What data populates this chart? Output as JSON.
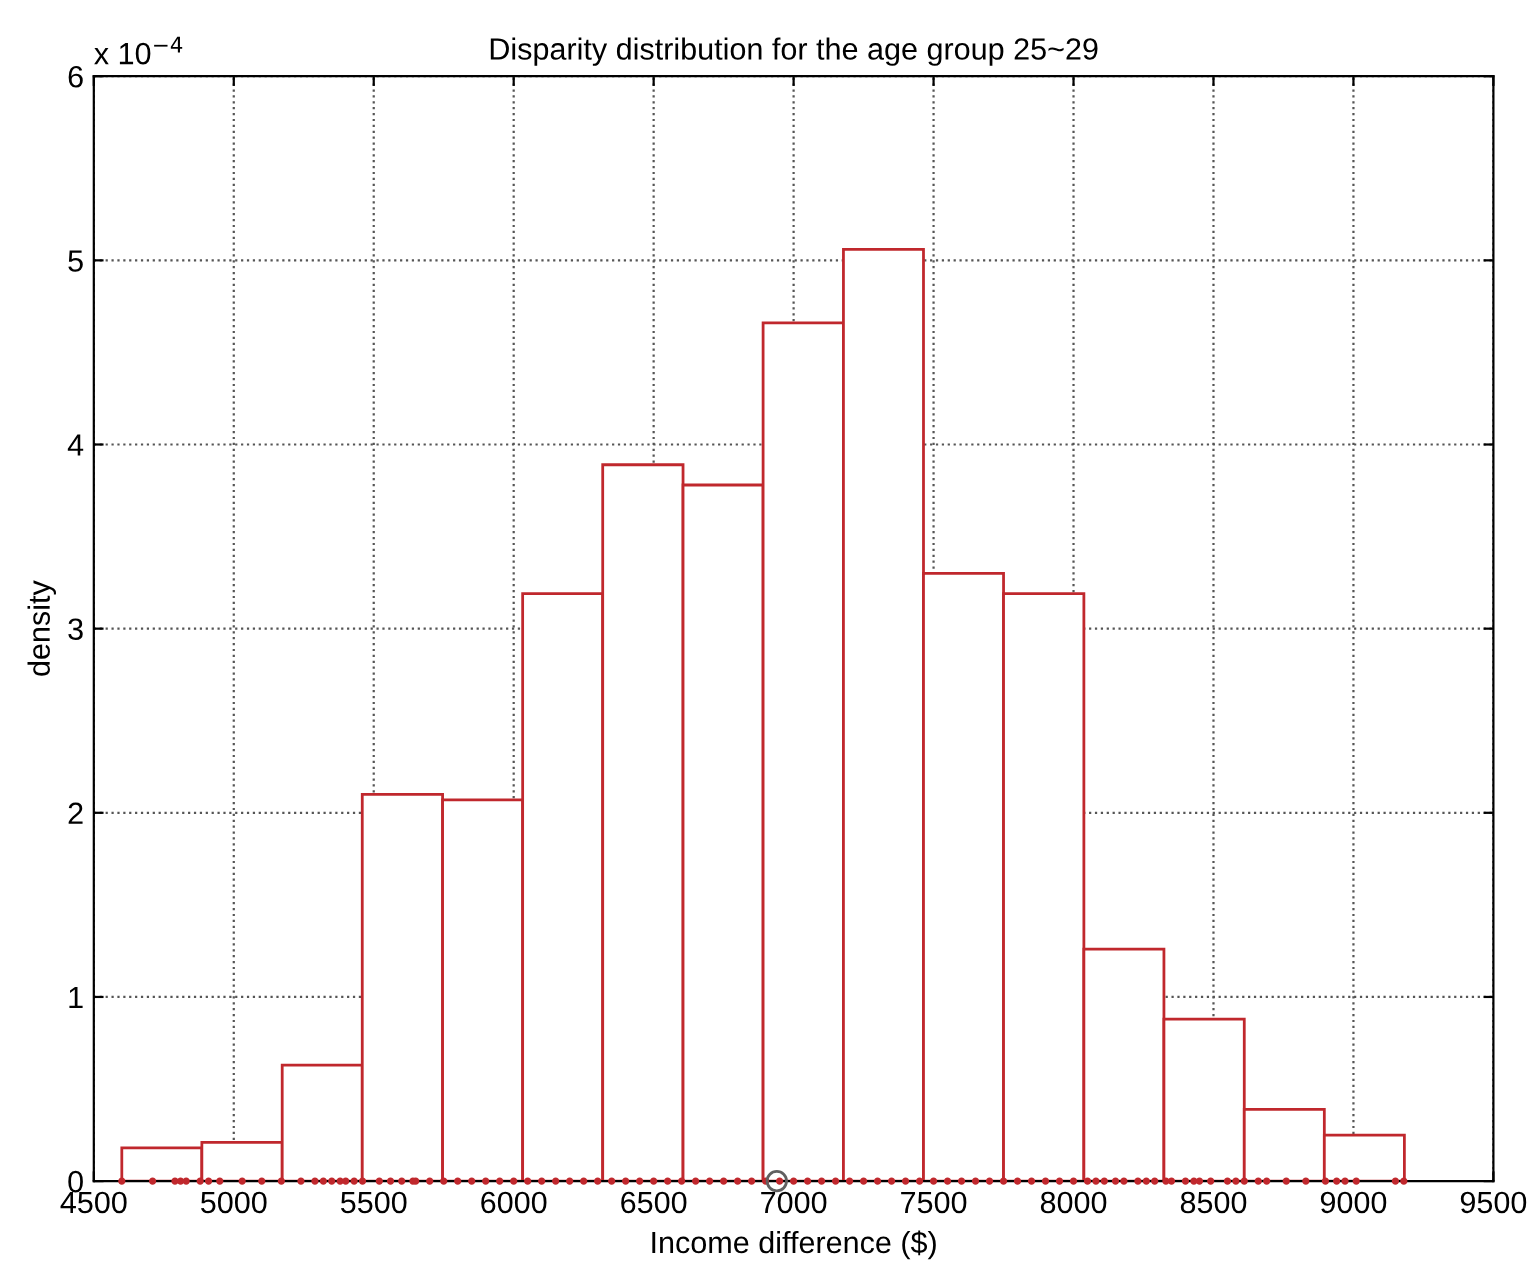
{
  "chart_data": {
    "type": "histogram",
    "title": "Disparity distribution for the age group 25~29",
    "xlabel": "Income difference ($)",
    "ylabel": "density",
    "annotations": [
      "x 10$^{−4}$"
    ],
    "bins": [
      4600,
      4886,
      5173,
      5459,
      5746,
      6032,
      6318,
      6605,
      6891,
      7178,
      7464,
      7750,
      8037,
      8323,
      8610,
      8896,
      9182
    ],
    "values": [
      0.18,
      0.21,
      0.63,
      2.1,
      2.07,
      3.19,
      3.89,
      3.78,
      4.66,
      5.06,
      3.3,
      3.19,
      1.26,
      0.88,
      0.39,
      0.25
    ],
    "color": "#c0282d",
    "series": [
      {
        "type": "scatter",
        "color": "#c0282d",
        "marker": "circle",
        "x": [
          4600,
          4710,
          4790,
          4810,
          4830,
          4880,
          4910,
          4950,
          5030,
          5100,
          5170,
          5240,
          5290,
          5320,
          5350,
          5380,
          5400,
          5430,
          5460,
          5520,
          5560,
          5600,
          5640,
          5650,
          5700,
          5750,
          5800,
          5850,
          5900,
          5950,
          6000,
          6050,
          6100,
          6150,
          6200,
          6250,
          6300,
          6350,
          6400,
          6450,
          6500,
          6550,
          6600,
          6650,
          6700,
          6750,
          6800,
          6850,
          6900,
          6950,
          7000,
          7050,
          7100,
          7150,
          7200,
          7250,
          7300,
          7350,
          7400,
          7450,
          7500,
          7550,
          7600,
          7650,
          7700,
          7750,
          7800,
          7850,
          7900,
          7950,
          8000,
          8050,
          8080,
          8110,
          8150,
          8180,
          8230,
          8260,
          8290,
          8330,
          8350,
          8400,
          8430,
          8450,
          8490,
          8550,
          8580,
          8610,
          8660,
          8690,
          8760,
          8830,
          8900,
          8940,
          8970,
          9010,
          9150,
          9180
        ],
        "values": [
          0,
          0,
          0,
          0,
          0,
          0,
          0,
          0,
          0,
          0,
          0,
          0,
          0,
          0,
          0,
          0,
          0,
          0,
          0,
          0,
          0,
          0,
          0,
          0,
          0,
          0,
          0,
          0,
          0,
          0,
          0,
          0,
          0,
          0,
          0,
          0,
          0,
          0,
          0,
          0,
          0,
          0,
          0,
          0,
          0,
          0,
          0,
          0,
          0,
          0,
          0,
          0,
          0,
          0,
          0,
          0,
          0,
          0,
          0,
          0,
          0,
          0,
          0,
          0,
          0,
          0,
          0,
          0,
          0,
          0,
          0,
          0,
          0,
          0,
          0,
          0,
          0,
          0,
          0,
          0,
          0,
          0,
          0,
          0,
          0,
          0,
          0,
          0,
          0,
          0,
          0,
          0,
          0,
          0,
          0,
          0,
          0,
          0
        ]
      },
      {
        "type": "scatter",
        "color": "#606060",
        "marker": "circle",
        "x": [
          6940
        ],
        "values": [
          0
        ]
      }
    ],
    "xlim": [
      4500,
      9500
    ],
    "xticks": [
      4500,
      5000,
      5500,
      6000,
      6500,
      7000,
      7500,
      8000,
      8500,
      9000,
      9500
    ],
    "ylim": [
      0,
      6
    ],
    "yticks": [
      0,
      1,
      2,
      3,
      4,
      5,
      6
    ],
    "grid": true
  }
}
